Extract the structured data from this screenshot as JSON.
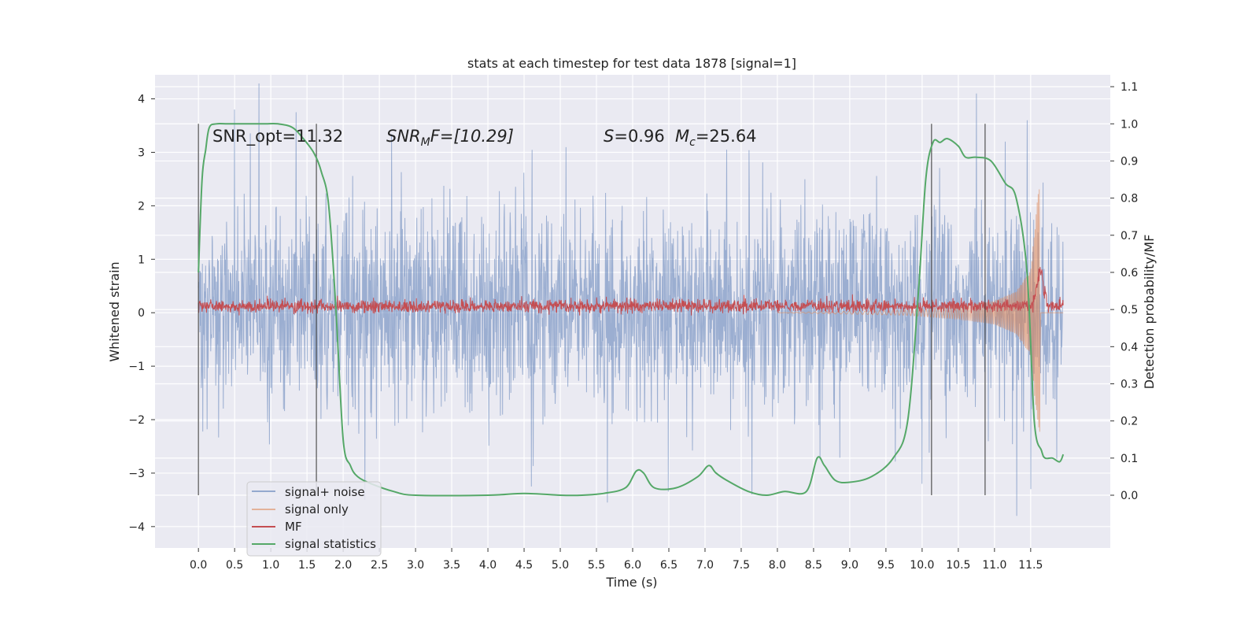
{
  "chart_data": {
    "type": "line",
    "title": "stats at each timestep for test data 1878 [signal=1]",
    "xlabel": "Time (s)",
    "ylabel_left": "Whitened strain",
    "ylabel_right": "Detection probability/MF",
    "xlim": [
      -0.6,
      12.6
    ],
    "ylim_left": [
      -4.4,
      4.45
    ],
    "ylim_right": [
      -0.142,
      1.132
    ],
    "x_ticks": [
      0.0,
      0.5,
      1.0,
      1.5,
      2.0,
      2.5,
      3.0,
      3.5,
      4.0,
      4.5,
      5.0,
      5.5,
      6.0,
      6.5,
      7.0,
      7.5,
      8.0,
      8.5,
      9.0,
      9.5,
      10.0,
      10.5,
      11.0,
      11.5
    ],
    "x_tick_labels": [
      "0.0",
      "0.5",
      "1.0",
      "1.5",
      "2.0",
      "2.5",
      "3.0",
      "3.5",
      "4.0",
      "4.5",
      "5.0",
      "5.5",
      "6.0",
      "6.5",
      "7.0",
      "7.5",
      "8.0",
      "8.5",
      "9.0",
      "9.5",
      "10.0",
      "10.5",
      "11.0",
      "11.5"
    ],
    "y_left_ticks": [
      4,
      3,
      2,
      1,
      0,
      -1,
      -2,
      -3,
      -4
    ],
    "y_left_tick_labels": [
      "4",
      "3",
      "2",
      "1",
      "0",
      "−1",
      "−2",
      "−3",
      "−4"
    ],
    "y_right_ticks": [
      1.1,
      1.0,
      0.9,
      0.8,
      0.7,
      0.6,
      0.5,
      0.4,
      0.3,
      0.2,
      0.1,
      0.0
    ],
    "y_right_tick_labels": [
      "1.1",
      "1.0",
      "0.9",
      "0.8",
      "0.7",
      "0.6",
      "0.5",
      "0.4",
      "0.3",
      "0.2",
      "0.1",
      "0.0"
    ],
    "grid": true,
    "legend_position": "lower-left",
    "annotations": {
      "snr_opt": "SNR_opt=11.32",
      "snr_mf_sym": "SNR",
      "snr_mf_sub": "M",
      "snr_mf_rest": "F=[10.29]",
      "s_sym": "S",
      "s_val": "=0.96",
      "mc_sym": "M",
      "mc_sub": "c",
      "mc_val": "=25.64"
    },
    "vertical_markers_x": [
      0.0,
      1.63,
      10.13,
      10.87
    ],
    "vertical_markers_range_right": [
      0.0,
      1.0
    ],
    "series": [
      {
        "name": "signal+ noise",
        "color": "#4c72b0",
        "axis": "left",
        "x_range": [
          0.0,
          11.95
        ],
        "typical_range": [
          -1.2,
          1.35
        ],
        "peaks": [
          {
            "x": 0.5,
            "y": 3.8
          },
          {
            "x": 1.35,
            "y": 3.75
          },
          {
            "x": 2.3,
            "y": -3.5
          },
          {
            "x": 4.6,
            "y": -3.25
          },
          {
            "x": 5.65,
            "y": -3.55
          },
          {
            "x": 7.3,
            "y": 3.05
          },
          {
            "x": 7.65,
            "y": -3.4
          },
          {
            "x": 10.0,
            "y": -3.2
          },
          {
            "x": 10.75,
            "y": 4.1
          },
          {
            "x": 11.45,
            "y": 3.6
          },
          {
            "x": 11.5,
            "y": -3.3
          },
          {
            "x": 11.15,
            "y": 3.2
          }
        ]
      },
      {
        "name": "signal only",
        "color": "#dd8452",
        "axis": "left",
        "description_points": [
          {
            "x": 9.8,
            "amplitude": 0.05
          },
          {
            "x": 10.5,
            "amplitude": 0.12
          },
          {
            "x": 11.0,
            "amplitude": 0.22
          },
          {
            "x": 11.3,
            "amplitude": 0.4
          },
          {
            "x": 11.5,
            "amplitude": 0.8
          },
          {
            "x": 11.6,
            "amplitude": 2.2
          },
          {
            "x": 11.63,
            "amplitude": 2.4
          }
        ]
      },
      {
        "name": "MF",
        "color": "#c44e52",
        "axis": "left",
        "x_range": [
          0.0,
          11.95
        ],
        "baseline": 0.12,
        "peak": {
          "x": 11.63,
          "y": 1.0
        }
      },
      {
        "name": "signal statistics",
        "color": "#55a868",
        "axis": "right",
        "x": [
          0.0,
          0.05,
          0.1,
          0.15,
          0.25,
          0.4,
          0.6,
          0.9,
          1.1,
          1.3,
          1.45,
          1.6,
          1.7,
          1.8,
          1.9,
          2.0,
          2.1,
          2.2,
          2.4,
          2.7,
          3.0,
          4.0,
          4.5,
          5.0,
          5.3,
          5.6,
          5.9,
          6.05,
          6.15,
          6.3,
          6.6,
          6.9,
          7.05,
          7.15,
          7.3,
          7.6,
          7.85,
          8.1,
          8.4,
          8.55,
          8.65,
          8.8,
          9.0,
          9.3,
          9.6,
          9.8,
          9.95,
          10.05,
          10.15,
          10.25,
          10.35,
          10.5,
          10.6,
          10.75,
          10.95,
          11.15,
          11.3,
          11.45,
          11.55,
          11.65,
          11.7,
          11.8,
          11.9,
          11.95
        ],
        "values": [
          0.6,
          0.85,
          0.93,
          0.99,
          1.0,
          1.0,
          1.0,
          1.0,
          1.0,
          0.99,
          0.96,
          0.92,
          0.87,
          0.78,
          0.5,
          0.15,
          0.08,
          0.05,
          0.03,
          0.01,
          0.0,
          0.0,
          0.005,
          0.0,
          0.0,
          0.005,
          0.02,
          0.065,
          0.06,
          0.02,
          0.02,
          0.05,
          0.08,
          0.06,
          0.04,
          0.01,
          0.0,
          0.01,
          0.01,
          0.1,
          0.08,
          0.04,
          0.035,
          0.05,
          0.1,
          0.2,
          0.55,
          0.85,
          0.95,
          0.95,
          0.96,
          0.94,
          0.91,
          0.91,
          0.9,
          0.84,
          0.8,
          0.6,
          0.2,
          0.12,
          0.1,
          0.1,
          0.09,
          0.11
        ]
      }
    ]
  }
}
